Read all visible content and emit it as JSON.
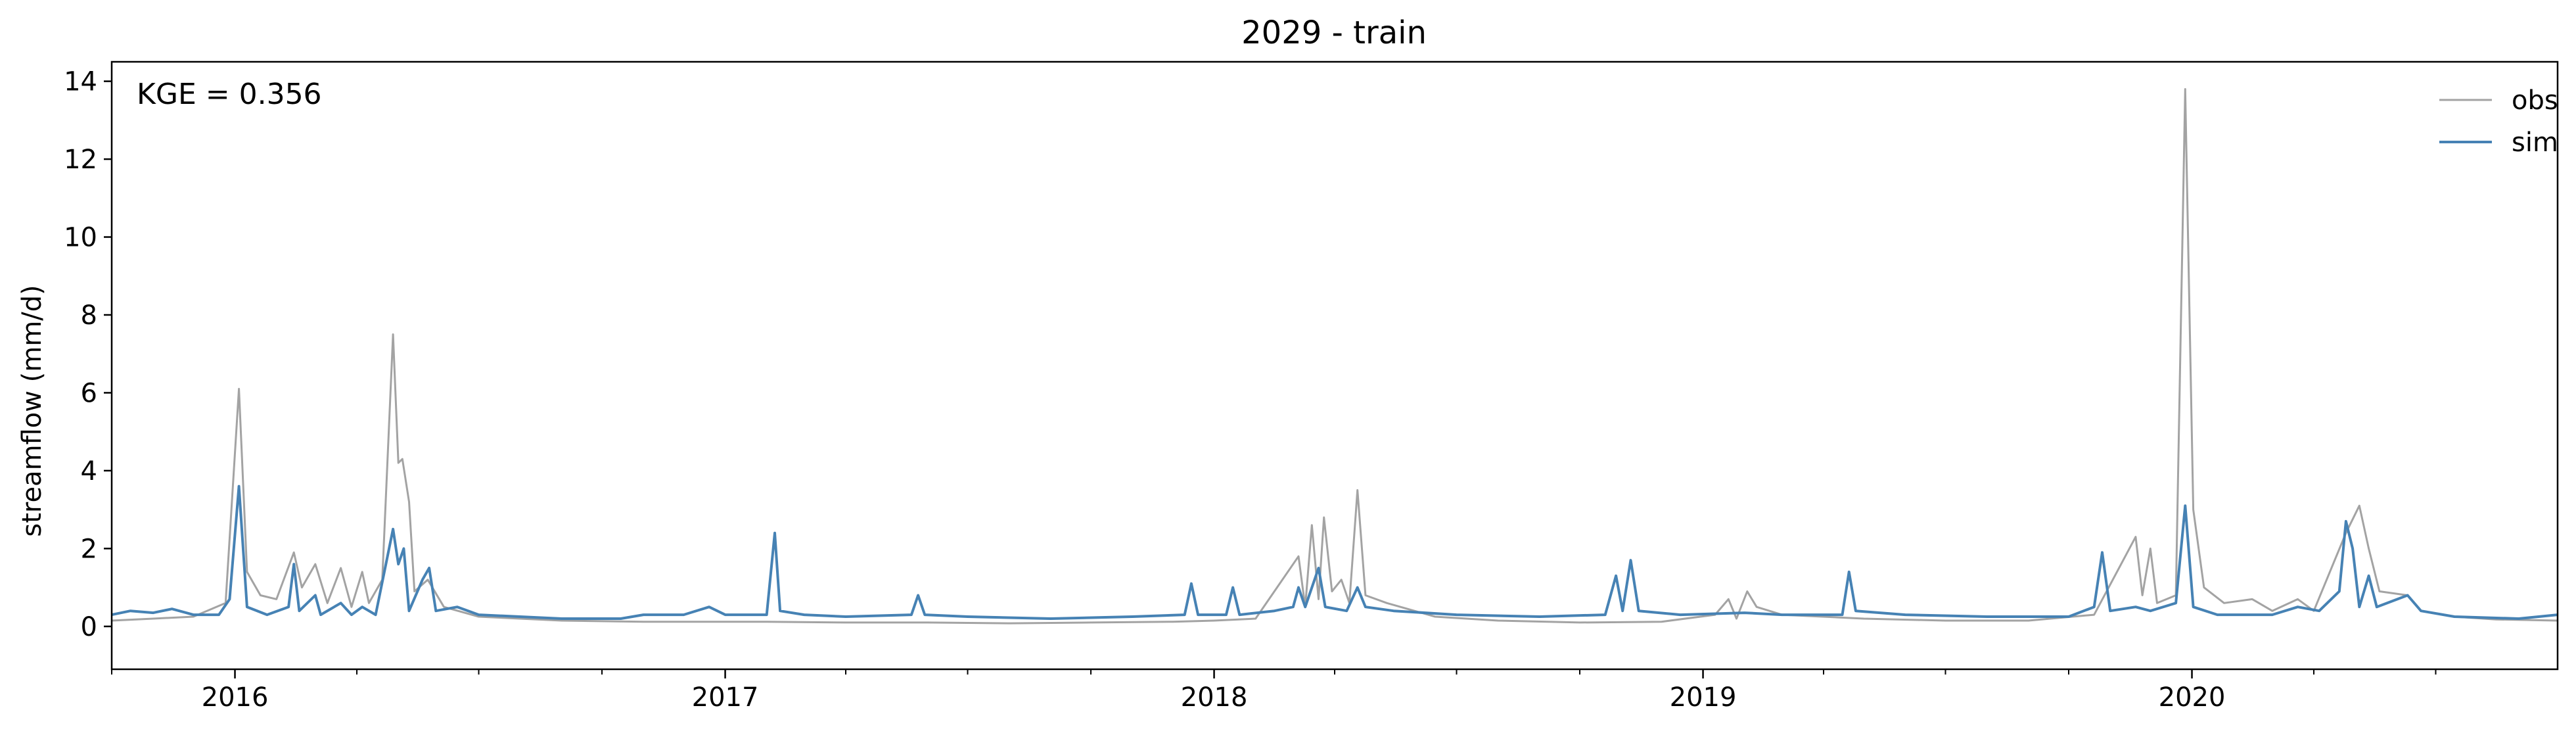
{
  "chart_data": {
    "type": "line",
    "title": "2029 - train",
    "xlabel": "",
    "ylabel": "streamflow (mm/d)",
    "annotation": "KGE = 0.356",
    "x_range": [
      "2015-10-01",
      "2020-09-30"
    ],
    "x_ticks": [
      {
        "date": "2016-01-01",
        "label": "2016"
      },
      {
        "date": "2017-01-01",
        "label": "2017"
      },
      {
        "date": "2018-01-01",
        "label": "2018"
      },
      {
        "date": "2019-01-01",
        "label": "2019"
      },
      {
        "date": "2020-01-01",
        "label": "2020"
      }
    ],
    "ylim": [
      -1.1,
      14.5
    ],
    "y_ticks": [
      0,
      2,
      4,
      6,
      8,
      10,
      12,
      14
    ],
    "grid": false,
    "legend_position": "top-right",
    "series": [
      {
        "name": "obs",
        "color": "#a3a3a3",
        "points": [
          [
            "2015-10-01",
            0.15
          ],
          [
            "2015-11-01",
            0.2
          ],
          [
            "2015-12-01",
            0.25
          ],
          [
            "2015-12-25",
            0.6
          ],
          [
            "2016-01-04",
            6.1
          ],
          [
            "2016-01-10",
            1.4
          ],
          [
            "2016-01-20",
            0.8
          ],
          [
            "2016-02-01",
            0.7
          ],
          [
            "2016-02-14",
            1.9
          ],
          [
            "2016-02-20",
            1.0
          ],
          [
            "2016-03-01",
            1.6
          ],
          [
            "2016-03-10",
            0.6
          ],
          [
            "2016-03-20",
            1.5
          ],
          [
            "2016-03-28",
            0.5
          ],
          [
            "2016-04-05",
            1.4
          ],
          [
            "2016-04-10",
            0.6
          ],
          [
            "2016-04-20",
            1.2
          ],
          [
            "2016-04-28",
            7.5
          ],
          [
            "2016-05-02",
            4.2
          ],
          [
            "2016-05-05",
            4.3
          ],
          [
            "2016-05-10",
            3.2
          ],
          [
            "2016-05-14",
            0.9
          ],
          [
            "2016-05-24",
            1.2
          ],
          [
            "2016-06-05",
            0.5
          ],
          [
            "2016-07-01",
            0.25
          ],
          [
            "2016-09-01",
            0.15
          ],
          [
            "2016-11-01",
            0.12
          ],
          [
            "2017-01-01",
            0.12
          ],
          [
            "2017-02-01",
            0.12
          ],
          [
            "2017-04-01",
            0.1
          ],
          [
            "2017-06-01",
            0.1
          ],
          [
            "2017-08-01",
            0.08
          ],
          [
            "2017-10-01",
            0.1
          ],
          [
            "2017-12-01",
            0.12
          ],
          [
            "2018-01-01",
            0.15
          ],
          [
            "2018-02-01",
            0.2
          ],
          [
            "2018-03-05",
            1.8
          ],
          [
            "2018-03-10",
            0.5
          ],
          [
            "2018-03-15",
            2.6
          ],
          [
            "2018-03-20",
            0.7
          ],
          [
            "2018-03-24",
            2.8
          ],
          [
            "2018-03-30",
            0.9
          ],
          [
            "2018-04-06",
            1.2
          ],
          [
            "2018-04-12",
            0.6
          ],
          [
            "2018-04-18",
            3.5
          ],
          [
            "2018-04-24",
            0.8
          ],
          [
            "2018-05-10",
            0.6
          ],
          [
            "2018-06-15",
            0.25
          ],
          [
            "2018-08-01",
            0.15
          ],
          [
            "2018-10-01",
            0.1
          ],
          [
            "2018-12-01",
            0.12
          ],
          [
            "2019-01-10",
            0.3
          ],
          [
            "2019-01-20",
            0.7
          ],
          [
            "2019-01-26",
            0.2
          ],
          [
            "2019-02-03",
            0.9
          ],
          [
            "2019-02-10",
            0.5
          ],
          [
            "2019-03-01",
            0.3
          ],
          [
            "2019-05-01",
            0.2
          ],
          [
            "2019-07-01",
            0.15
          ],
          [
            "2019-09-01",
            0.15
          ],
          [
            "2019-10-20",
            0.3
          ],
          [
            "2019-11-20",
            2.3
          ],
          [
            "2019-11-25",
            0.8
          ],
          [
            "2019-12-01",
            2.0
          ],
          [
            "2019-12-06",
            0.6
          ],
          [
            "2019-12-20",
            0.8
          ],
          [
            "2019-12-27",
            13.8
          ],
          [
            "2020-01-02",
            3.0
          ],
          [
            "2020-01-10",
            1.0
          ],
          [
            "2020-01-25",
            0.6
          ],
          [
            "2020-02-15",
            0.7
          ],
          [
            "2020-03-01",
            0.4
          ],
          [
            "2020-03-20",
            0.7
          ],
          [
            "2020-04-01",
            0.4
          ],
          [
            "2020-04-25",
            2.4
          ],
          [
            "2020-05-05",
            3.1
          ],
          [
            "2020-05-12",
            2.0
          ],
          [
            "2020-05-20",
            0.9
          ],
          [
            "2020-06-10",
            0.8
          ],
          [
            "2020-06-20",
            0.4
          ],
          [
            "2020-07-15",
            0.25
          ],
          [
            "2020-08-15",
            0.18
          ],
          [
            "2020-09-30",
            0.15
          ]
        ]
      },
      {
        "name": "sim",
        "color": "#4682b4",
        "points": [
          [
            "2015-10-01",
            0.3
          ],
          [
            "2015-10-15",
            0.4
          ],
          [
            "2015-11-01",
            0.35
          ],
          [
            "2015-11-15",
            0.45
          ],
          [
            "2015-12-01",
            0.3
          ],
          [
            "2015-12-20",
            0.3
          ],
          [
            "2015-12-28",
            0.7
          ],
          [
            "2016-01-04",
            3.6
          ],
          [
            "2016-01-10",
            0.5
          ],
          [
            "2016-01-25",
            0.3
          ],
          [
            "2016-02-10",
            0.5
          ],
          [
            "2016-02-14",
            1.6
          ],
          [
            "2016-02-18",
            0.4
          ],
          [
            "2016-03-01",
            0.8
          ],
          [
            "2016-03-05",
            0.3
          ],
          [
            "2016-03-20",
            0.6
          ],
          [
            "2016-03-28",
            0.3
          ],
          [
            "2016-04-05",
            0.5
          ],
          [
            "2016-04-15",
            0.3
          ],
          [
            "2016-04-28",
            2.5
          ],
          [
            "2016-05-02",
            1.6
          ],
          [
            "2016-05-06",
            2.0
          ],
          [
            "2016-05-10",
            0.4
          ],
          [
            "2016-05-20",
            1.2
          ],
          [
            "2016-05-25",
            1.5
          ],
          [
            "2016-05-30",
            0.4
          ],
          [
            "2016-06-15",
            0.5
          ],
          [
            "2016-07-01",
            0.3
          ],
          [
            "2016-09-01",
            0.2
          ],
          [
            "2016-10-15",
            0.2
          ],
          [
            "2016-11-01",
            0.3
          ],
          [
            "2016-12-01",
            0.3
          ],
          [
            "2016-12-20",
            0.5
          ],
          [
            "2017-01-01",
            0.3
          ],
          [
            "2017-02-01",
            0.3
          ],
          [
            "2017-02-07",
            2.4
          ],
          [
            "2017-02-11",
            0.4
          ],
          [
            "2017-03-01",
            0.3
          ],
          [
            "2017-04-01",
            0.25
          ],
          [
            "2017-05-20",
            0.3
          ],
          [
            "2017-05-25",
            0.8
          ],
          [
            "2017-05-30",
            0.3
          ],
          [
            "2017-07-01",
            0.25
          ],
          [
            "2017-09-01",
            0.2
          ],
          [
            "2017-11-01",
            0.25
          ],
          [
            "2017-12-10",
            0.3
          ],
          [
            "2017-12-15",
            1.1
          ],
          [
            "2017-12-20",
            0.3
          ],
          [
            "2018-01-10",
            0.3
          ],
          [
            "2018-01-15",
            1.0
          ],
          [
            "2018-01-20",
            0.3
          ],
          [
            "2018-02-15",
            0.4
          ],
          [
            "2018-03-01",
            0.5
          ],
          [
            "2018-03-05",
            1.0
          ],
          [
            "2018-03-10",
            0.5
          ],
          [
            "2018-03-20",
            1.5
          ],
          [
            "2018-03-25",
            0.5
          ],
          [
            "2018-04-10",
            0.4
          ],
          [
            "2018-04-18",
            1.0
          ],
          [
            "2018-04-24",
            0.5
          ],
          [
            "2018-05-15",
            0.4
          ],
          [
            "2018-07-01",
            0.3
          ],
          [
            "2018-09-01",
            0.25
          ],
          [
            "2018-10-20",
            0.3
          ],
          [
            "2018-10-28",
            1.3
          ],
          [
            "2018-11-02",
            0.4
          ],
          [
            "2018-11-08",
            1.7
          ],
          [
            "2018-11-14",
            0.4
          ],
          [
            "2018-12-15",
            0.3
          ],
          [
            "2019-02-01",
            0.35
          ],
          [
            "2019-03-01",
            0.3
          ],
          [
            "2019-04-15",
            0.3
          ],
          [
            "2019-04-20",
            1.4
          ],
          [
            "2019-04-25",
            0.4
          ],
          [
            "2019-06-01",
            0.3
          ],
          [
            "2019-08-01",
            0.25
          ],
          [
            "2019-10-01",
            0.25
          ],
          [
            "2019-10-20",
            0.5
          ],
          [
            "2019-10-26",
            1.9
          ],
          [
            "2019-11-01",
            0.4
          ],
          [
            "2019-11-20",
            0.5
          ],
          [
            "2019-12-01",
            0.4
          ],
          [
            "2019-12-20",
            0.6
          ],
          [
            "2019-12-27",
            3.1
          ],
          [
            "2020-01-02",
            0.5
          ],
          [
            "2020-01-20",
            0.3
          ],
          [
            "2020-03-01",
            0.3
          ],
          [
            "2020-03-20",
            0.5
          ],
          [
            "2020-04-05",
            0.4
          ],
          [
            "2020-04-20",
            0.9
          ],
          [
            "2020-04-25",
            2.7
          ],
          [
            "2020-04-30",
            2.0
          ],
          [
            "2020-05-05",
            0.5
          ],
          [
            "2020-05-12",
            1.3
          ],
          [
            "2020-05-18",
            0.5
          ],
          [
            "2020-06-10",
            0.8
          ],
          [
            "2020-06-20",
            0.4
          ],
          [
            "2020-07-15",
            0.25
          ],
          [
            "2020-09-01",
            0.2
          ],
          [
            "2020-09-30",
            0.3
          ]
        ]
      }
    ]
  }
}
